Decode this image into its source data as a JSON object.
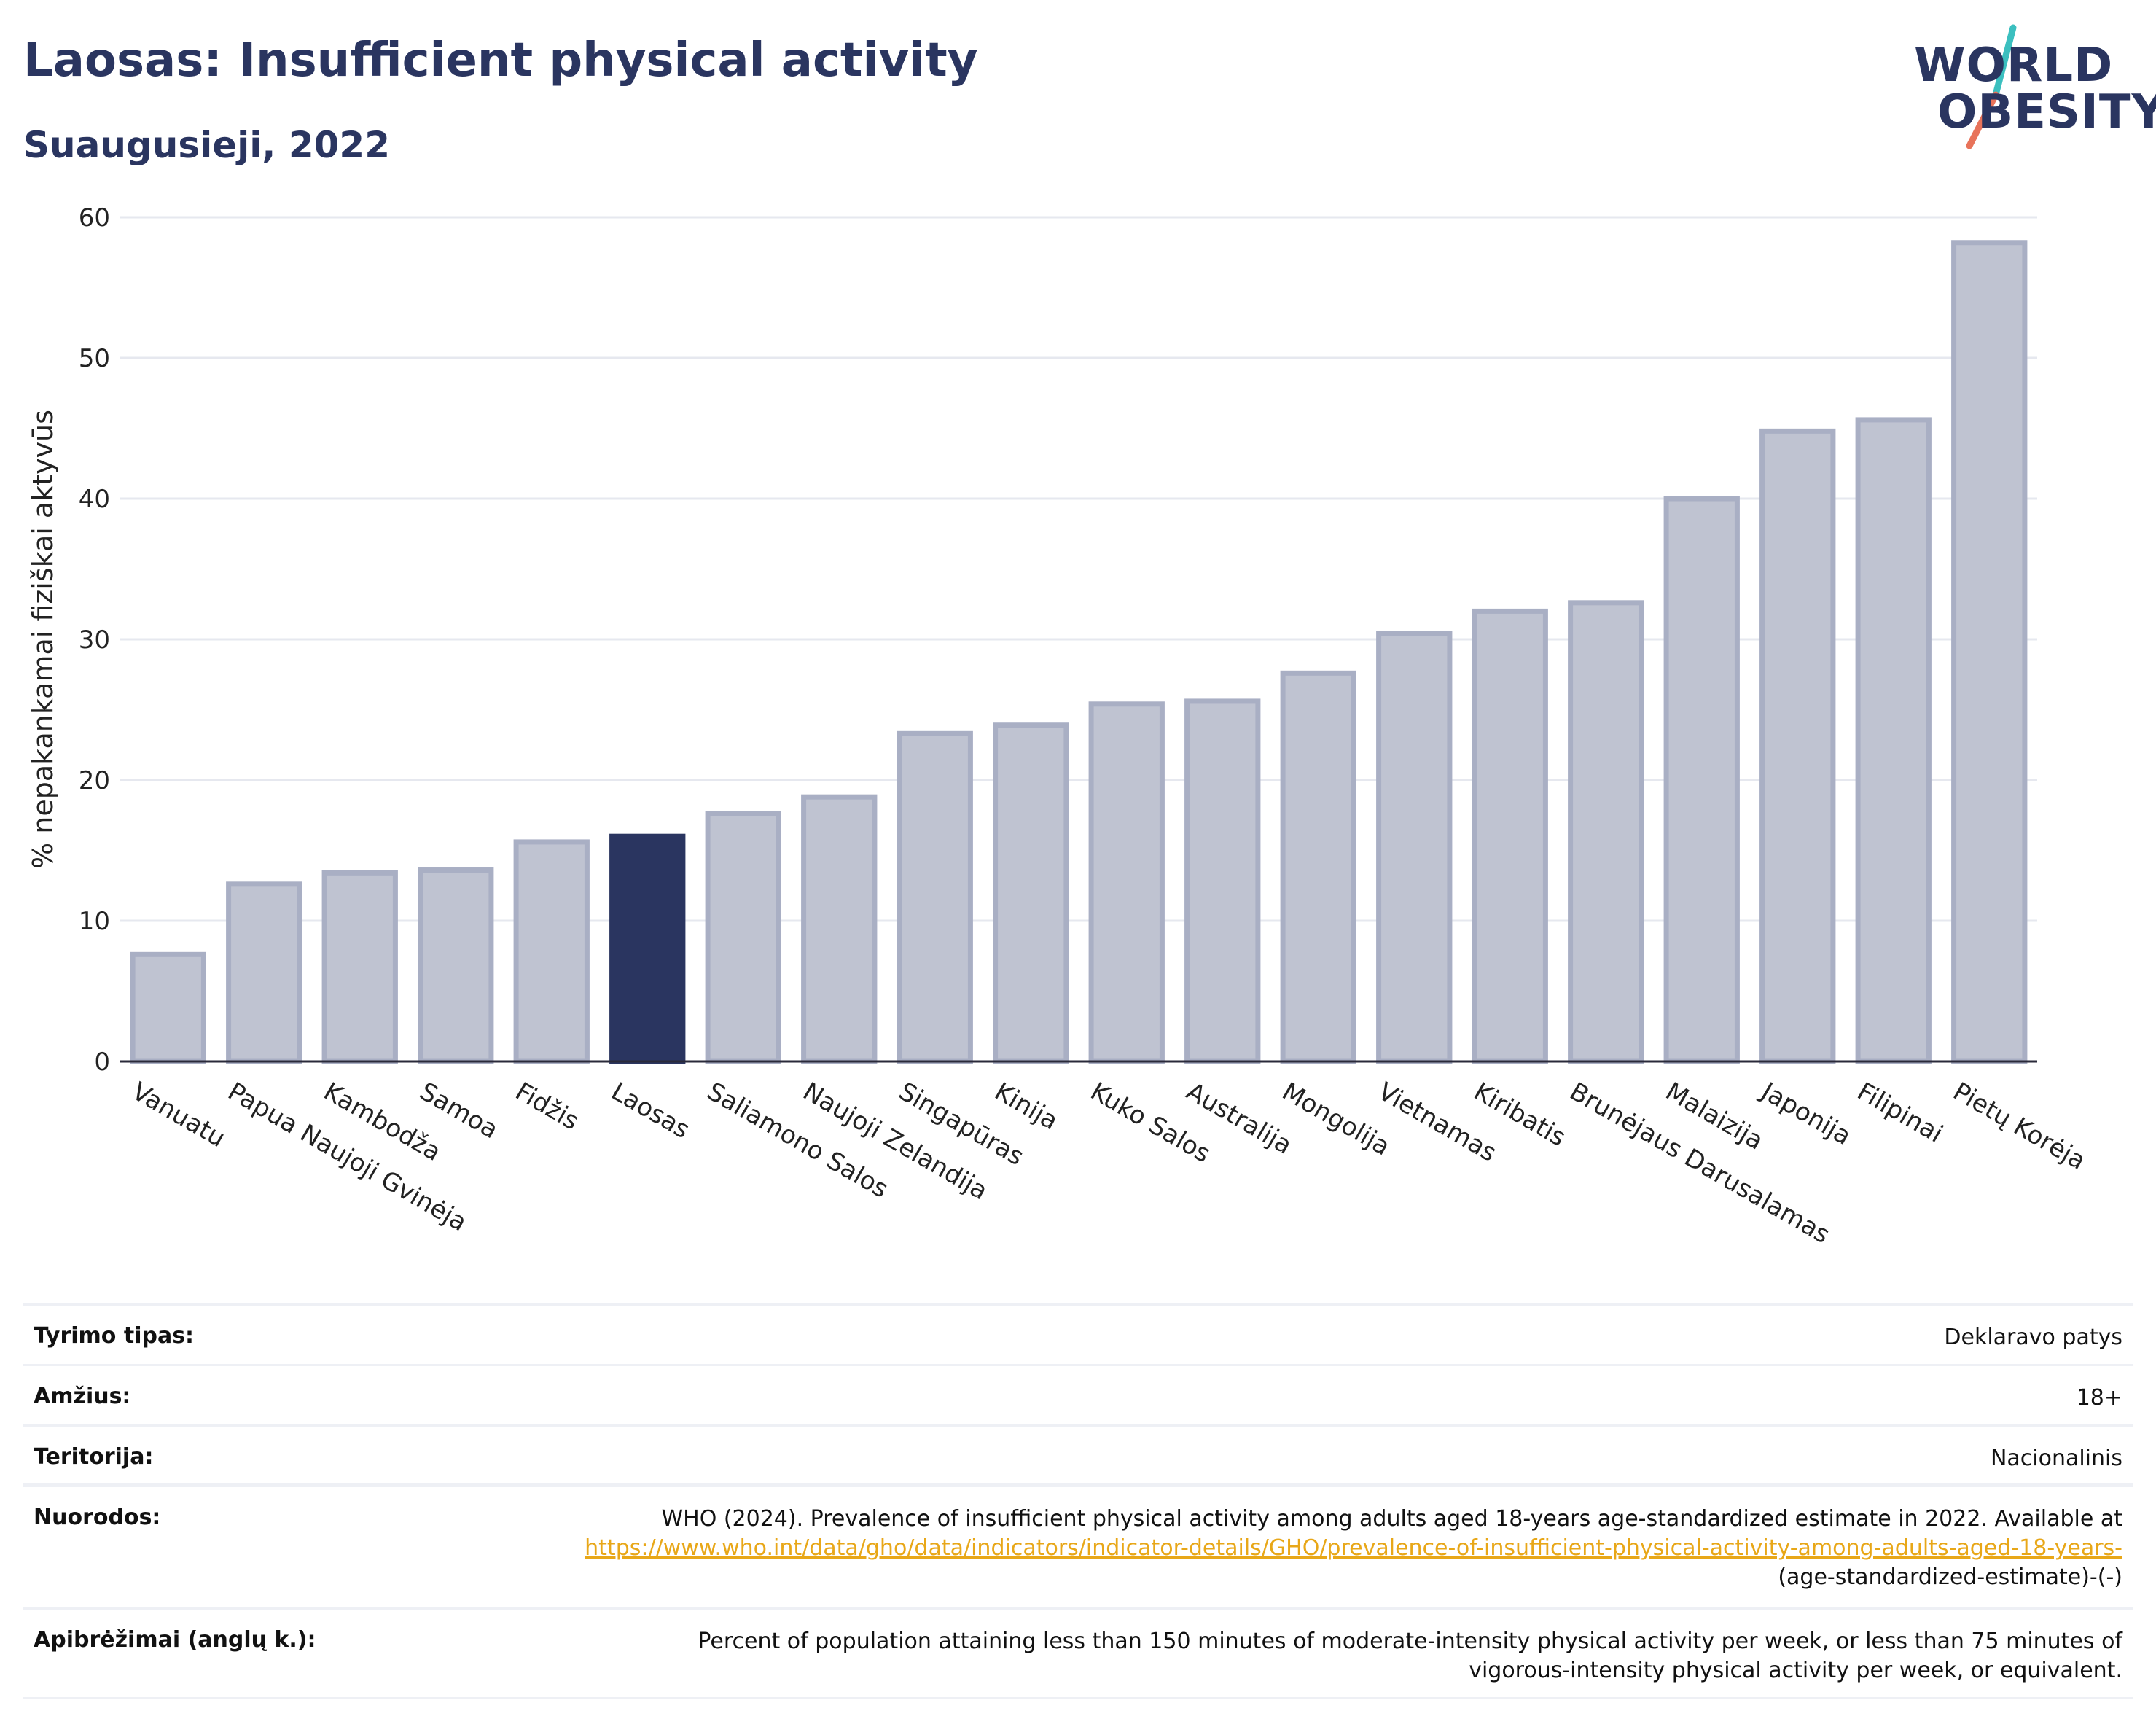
{
  "header": {
    "title": "Laosas: Insufficient physical activity",
    "subtitle": "Suaugusieji, 2022"
  },
  "logo": {
    "line1": "WORLD",
    "line2": "OBESITY",
    "accent_teal": "#3bbfbf",
    "accent_coral": "#e8735a"
  },
  "colors": {
    "bar": "#bfc3d1",
    "bar_border": "#a9afc4",
    "bar_highlight": "#2a3560",
    "gridline": "#e6e8ef",
    "text": "#2a3560"
  },
  "chart_data": {
    "type": "bar",
    "ylabel": "% nepakankamai fiziškai aktyvūs",
    "ylim": [
      0,
      60
    ],
    "yticks": [
      0,
      10,
      20,
      30,
      40,
      50,
      60
    ],
    "grid": true,
    "highlight": "Laosas",
    "categories": [
      "Vanuatu",
      "Papua Naujoji Gvinėja",
      "Kambodža",
      "Samoa",
      "Fidžis",
      "Laosas",
      "Saliamono Salos",
      "Naujoji Zelandija",
      "Singapūras",
      "Kinija",
      "Kuko Salos",
      "Australija",
      "Mongolija",
      "Vietnamas",
      "Kiribatis",
      "Brunėjaus Darusalamas",
      "Malaizija",
      "Japonija",
      "Filipinai",
      "Pietų Korėja"
    ],
    "values": [
      7.6,
      12.6,
      13.4,
      13.6,
      15.6,
      16.0,
      17.6,
      18.8,
      23.3,
      23.9,
      25.4,
      25.6,
      27.6,
      30.4,
      32.0,
      32.6,
      40.0,
      44.8,
      45.6,
      58.2
    ]
  },
  "meta": {
    "rows": [
      {
        "label": "Tyrimo tipas:",
        "value": "Deklaravo patys"
      },
      {
        "label": "Amžius:",
        "value": "18+"
      },
      {
        "label": "Teritorija:",
        "value": "Nacionalinis"
      }
    ],
    "references": {
      "label": "Nuorodos:",
      "text": "WHO (2024). Prevalence of insufficient physical activity among adults aged 18-years age-standardized estimate in 2022. Available at",
      "link": "https://www.who.int/data/gho/data/indicators/indicator-details/GHO/prevalence-of-insufficient-physical-activity-among-adults-aged-18-years-",
      "suffix": "(age-standardized-estimate)-(-)"
    },
    "definitions": {
      "label": "Apibrėžimai (anglų k.):",
      "line1": "Percent of population attaining less than 150 minutes of moderate-intensity physical activity per week, or less than 75 minutes of",
      "line2": "vigorous-intensity physical activity per week, or equivalent."
    }
  }
}
